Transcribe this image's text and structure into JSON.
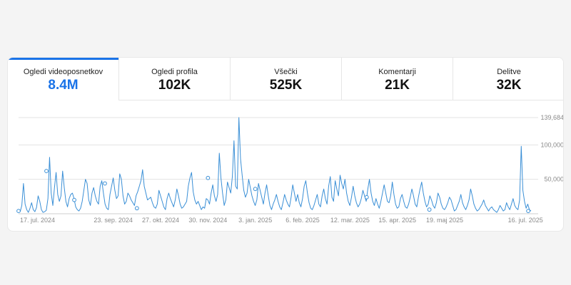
{
  "tabs": [
    {
      "label": "Ogledi videoposnetkov",
      "value": "8.4M",
      "active": true
    },
    {
      "label": "Ogledi profila",
      "value": "102K",
      "active": false
    },
    {
      "label": "Všečki",
      "value": "525K",
      "active": false
    },
    {
      "label": "Komentarji",
      "value": "21K",
      "active": false
    },
    {
      "label": "Delitve",
      "value": "32K",
      "active": false
    }
  ],
  "colors": {
    "accent": "#1a73e8",
    "line": "#3a8fd6",
    "grid": "#e3e3e3",
    "axis_text": "#8a8a8a"
  },
  "chart_data": {
    "type": "line",
    "title": "",
    "xlabel": "",
    "ylabel": "",
    "ylim": [
      0,
      139684
    ],
    "y_ticks": [
      "139,684",
      "100,000",
      "50,000"
    ],
    "y_tick_values": [
      139684,
      100000,
      50000
    ],
    "x_ticks": [
      "17. jul. 2024",
      "23. sep. 2024",
      "27. okt. 2024",
      "30. nov. 2024",
      "3. jan. 2025",
      "6. feb. 2025",
      "12. mar. 2025",
      "15. apr. 2025",
      "19. maj 2025",
      "16. jul. 2025"
    ],
    "x_tick_days": [
      0,
      68,
      102,
      136,
      170,
      204,
      238,
      272,
      306,
      364
    ],
    "x_range_days": [
      0,
      368
    ],
    "grid": true,
    "series": [
      {
        "values": [
          4000,
          3000,
          12000,
          44000,
          14000,
          6000,
          2000,
          8000,
          16000,
          6000,
          3000,
          9000,
          26000,
          18000,
          6000,
          2000,
          3000,
          5000,
          22000,
          82000,
          30000,
          12000,
          38000,
          60000,
          28000,
          18000,
          26000,
          62000,
          38000,
          18000,
          10000,
          22000,
          28000,
          30000,
          22000,
          10000,
          6000,
          4000,
          8000,
          18000,
          34000,
          50000,
          44000,
          20000,
          12000,
          30000,
          38000,
          26000,
          18000,
          14000,
          40000,
          48000,
          30000,
          14000,
          8000,
          6000,
          28000,
          40000,
          52000,
          34000,
          22000,
          26000,
          58000,
          50000,
          26000,
          14000,
          18000,
          30000,
          26000,
          20000,
          16000,
          12000,
          26000,
          32000,
          40000,
          48000,
          64000,
          40000,
          30000,
          20000,
          22000,
          24000,
          16000,
          10000,
          8000,
          14000,
          34000,
          26000,
          18000,
          10000,
          6000,
          22000,
          30000,
          22000,
          16000,
          10000,
          20000,
          36000,
          26000,
          14000,
          8000,
          10000,
          14000,
          18000,
          40000,
          52000,
          60000,
          32000,
          20000,
          14000,
          18000,
          12000,
          6000,
          10000,
          8000,
          22000,
          20000,
          14000,
          30000,
          42000,
          26000,
          18000,
          28000,
          88000,
          52000,
          30000,
          12000,
          20000,
          46000,
          38000,
          30000,
          54000,
          106000,
          40000,
          36000,
          139684,
          80000,
          56000,
          34000,
          24000,
          30000,
          50000,
          38000,
          26000,
          18000,
          12000,
          20000,
          44000,
          34000,
          24000,
          14000,
          30000,
          42000,
          26000,
          12000,
          6000,
          14000,
          20000,
          28000,
          18000,
          10000,
          6000,
          16000,
          28000,
          20000,
          14000,
          10000,
          24000,
          42000,
          30000,
          18000,
          28000,
          16000,
          10000,
          22000,
          40000,
          48000,
          30000,
          16000,
          8000,
          6000,
          12000,
          20000,
          28000,
          14000,
          10000,
          26000,
          36000,
          22000,
          14000,
          40000,
          54000,
          24000,
          18000,
          48000,
          36000,
          26000,
          56000,
          44000,
          36000,
          50000,
          30000,
          18000,
          12000,
          24000,
          40000,
          26000,
          16000,
          10000,
          14000,
          22000,
          34000,
          26000,
          18000,
          36000,
          50000,
          30000,
          18000,
          12000,
          22000,
          14000,
          8000,
          18000,
          30000,
          42000,
          30000,
          18000,
          16000,
          26000,
          46000,
          28000,
          14000,
          8000,
          10000,
          22000,
          28000,
          18000,
          10000,
          8000,
          14000,
          24000,
          36000,
          26000,
          14000,
          10000,
          24000,
          36000,
          46000,
          30000,
          18000,
          10000,
          14000,
          26000,
          20000,
          12000,
          8000,
          16000,
          30000,
          24000,
          14000,
          8000,
          6000,
          10000,
          16000,
          24000,
          20000,
          12000,
          4000,
          6000,
          12000,
          18000,
          28000,
          16000,
          10000,
          6000,
          12000,
          20000,
          36000,
          26000,
          14000,
          8000,
          4000,
          6000,
          10000,
          14000,
          20000,
          12000,
          8000,
          4000,
          8000,
          10000,
          6000,
          4000,
          2000,
          6000,
          12000,
          8000,
          4000,
          6000,
          16000,
          10000,
          6000,
          14000,
          22000,
          12000,
          8000,
          6000,
          20000,
          98000,
          34000,
          18000,
          8000,
          14000,
          6000,
          4000
        ]
      }
    ],
    "markers": [
      {
        "day": 0,
        "value": 4000
      },
      {
        "day": 20,
        "value": 62000
      },
      {
        "day": 40,
        "value": 20000
      },
      {
        "day": 62,
        "value": 44000
      },
      {
        "day": 85,
        "value": 8000
      },
      {
        "day": 136,
        "value": 52000
      },
      {
        "day": 170,
        "value": 36000
      },
      {
        "day": 250,
        "value": 24000
      },
      {
        "day": 295,
        "value": 6000
      },
      {
        "day": 366,
        "value": 4000
      }
    ]
  }
}
